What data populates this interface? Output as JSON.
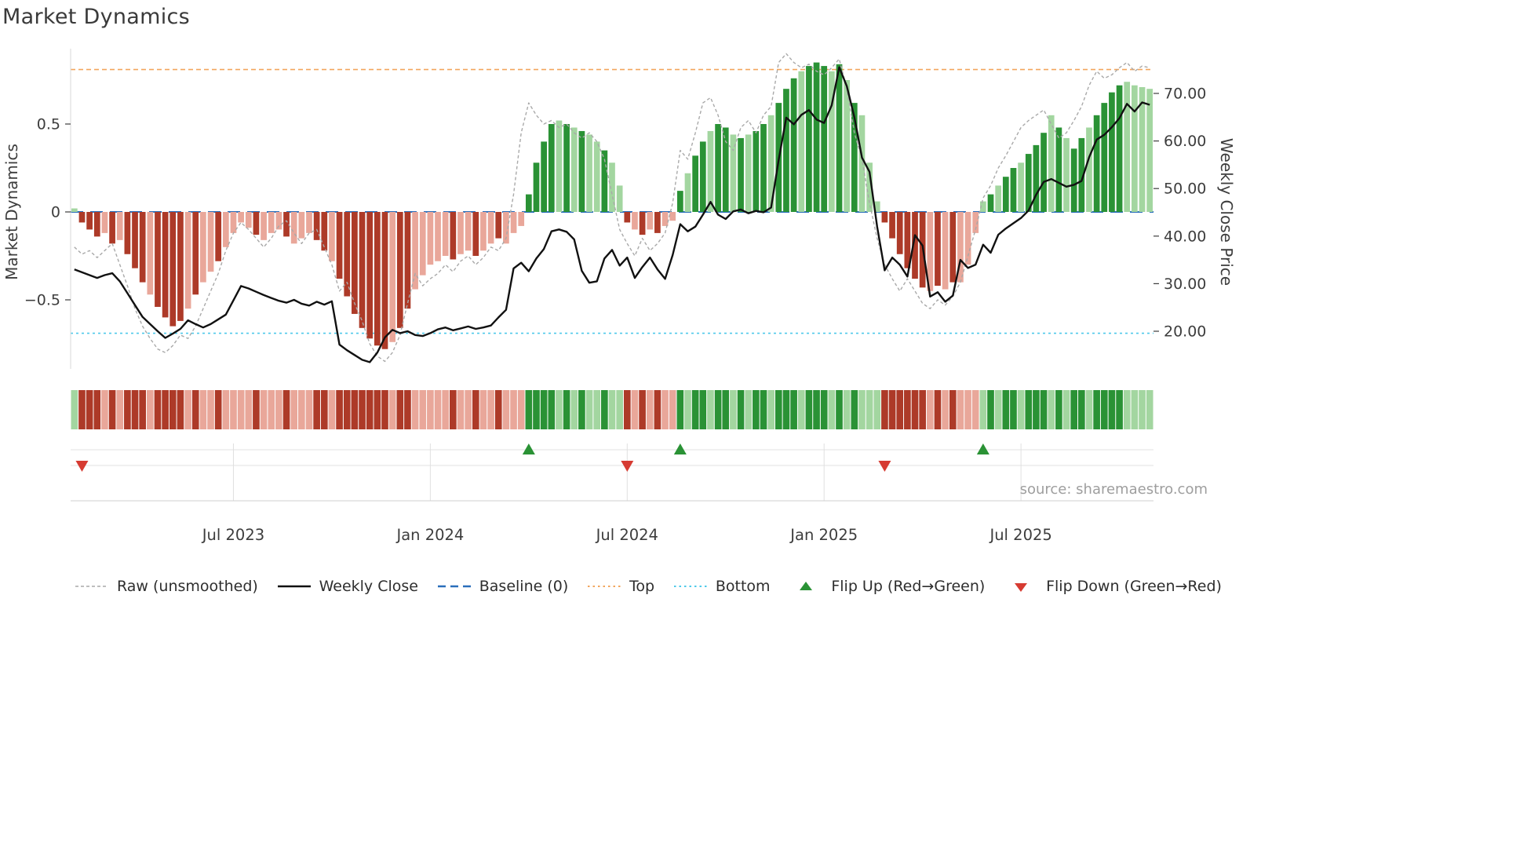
{
  "title": "Market Dynamics",
  "source": "source: sharemaestro.com",
  "colors": {
    "bar_neg_dark": "#ad3a28",
    "bar_neg_light": "#e9a79a",
    "bar_pos_dark": "#2a9235",
    "bar_pos_light": "#a3d6a0",
    "raw_line": "#a9a9a9",
    "close_line": "#111111",
    "baseline": "#2a6fbb",
    "top_line": "#f2a65e",
    "bottom_line": "#4ec9ea",
    "flip_up": "#2a9235",
    "flip_down": "#d63b32",
    "grid": "#e0e0e0",
    "axis_text": "#3d3d3d",
    "spine": "#d9d9d9",
    "source_text": "#9e9e9e"
  },
  "legend": [
    {
      "label": "Raw (unsmoothed)",
      "type": "line-dashed",
      "color": "#a9a9a9"
    },
    {
      "label": "Weekly Close",
      "type": "line-solid",
      "color": "#111111"
    },
    {
      "label": "Baseline (0)",
      "type": "line-longdash",
      "color": "#2a6fbb"
    },
    {
      "label": "Top",
      "type": "line-dotted",
      "color": "#f2a65e"
    },
    {
      "label": "Bottom",
      "type": "line-dotted",
      "color": "#4ec9ea"
    },
    {
      "label": "Flip Up (Red→Green)",
      "type": "triangle-up",
      "color": "#2a9235"
    },
    {
      "label": "Flip Down (Green→Red)",
      "type": "triangle-down",
      "color": "#d63b32"
    }
  ],
  "chart_data": {
    "type": "bar",
    "title": "Market Dynamics",
    "x_start_date": "2023-02-06",
    "x_step_days": 7,
    "n_weeks": 143,
    "ylabel_left": "Market Dynamics",
    "ylabel_right": "Weekly Close Price",
    "left_ticks": [
      {
        "value": 0.5,
        "label": "0.5"
      },
      {
        "value": 0.0,
        "label": "0"
      },
      {
        "value": -0.5,
        "label": "−0.5"
      }
    ],
    "right_ticks": [
      {
        "value": 70,
        "label": "70.00"
      },
      {
        "value": 60,
        "label": "60.00"
      },
      {
        "value": 50,
        "label": "50.00"
      },
      {
        "value": 40,
        "label": "40.00"
      },
      {
        "value": 30,
        "label": "30.00"
      },
      {
        "value": 20,
        "label": "20.00"
      }
    ],
    "x_ticks": [
      {
        "week": 21,
        "label": "Jul 2023"
      },
      {
        "week": 47,
        "label": "Jan 2024"
      },
      {
        "week": 73,
        "label": "Jul 2024"
      },
      {
        "week": 99,
        "label": "Jan 2025"
      },
      {
        "week": 125,
        "label": "Jul 2025"
      }
    ],
    "baseline_value": 0,
    "top_line_value": 0.81,
    "bottom_line_value": -0.69,
    "flip_up_weeks": [
      60,
      80,
      120
    ],
    "flip_down_weeks": [
      1,
      73,
      107
    ],
    "series": [
      {
        "name": "Market Dynamics",
        "type": "bar",
        "axis": "left",
        "values": [
          0.02,
          -0.06,
          -0.1,
          -0.14,
          -0.12,
          -0.18,
          -0.16,
          -0.24,
          -0.32,
          -0.4,
          -0.47,
          -0.54,
          -0.6,
          -0.65,
          -0.62,
          -0.55,
          -0.47,
          -0.4,
          -0.34,
          -0.28,
          -0.2,
          -0.12,
          -0.06,
          -0.09,
          -0.13,
          -0.16,
          -0.12,
          -0.1,
          -0.14,
          -0.18,
          -0.15,
          -0.12,
          -0.16,
          -0.22,
          -0.28,
          -0.38,
          -0.48,
          -0.58,
          -0.66,
          -0.72,
          -0.76,
          -0.78,
          -0.74,
          -0.66,
          -0.55,
          -0.44,
          -0.36,
          -0.3,
          -0.28,
          -0.25,
          -0.27,
          -0.24,
          -0.22,
          -0.25,
          -0.22,
          -0.18,
          -0.15,
          -0.18,
          -0.12,
          -0.08,
          0.1,
          0.28,
          0.4,
          0.5,
          0.52,
          0.5,
          0.48,
          0.46,
          0.44,
          0.4,
          0.35,
          0.28,
          0.15,
          -0.06,
          -0.1,
          -0.13,
          -0.1,
          -0.12,
          -0.08,
          -0.05,
          0.12,
          0.22,
          0.32,
          0.4,
          0.46,
          0.5,
          0.48,
          0.44,
          0.42,
          0.44,
          0.46,
          0.5,
          0.55,
          0.62,
          0.7,
          0.76,
          0.8,
          0.83,
          0.85,
          0.83,
          0.8,
          0.84,
          0.75,
          0.62,
          0.55,
          0.28,
          0.06,
          -0.06,
          -0.15,
          -0.24,
          -0.32,
          -0.38,
          -0.43,
          -0.45,
          -0.42,
          -0.44,
          -0.4,
          -0.4,
          -0.3,
          -0.12,
          0.06,
          0.1,
          0.15,
          0.2,
          0.25,
          0.28,
          0.33,
          0.38,
          0.45,
          0.55,
          0.48,
          0.42,
          0.36,
          0.42,
          0.48,
          0.55,
          0.62,
          0.68,
          0.72,
          0.74,
          0.72,
          0.71,
          0.7
        ]
      },
      {
        "name": "Raw (unsmoothed)",
        "type": "line",
        "style": "dashed",
        "axis": "left",
        "values": [
          -0.2,
          -0.24,
          -0.22,
          -0.26,
          -0.22,
          -0.18,
          -0.3,
          -0.42,
          -0.55,
          -0.65,
          -0.72,
          -0.78,
          -0.8,
          -0.76,
          -0.7,
          -0.72,
          -0.65,
          -0.55,
          -0.45,
          -0.35,
          -0.22,
          -0.12,
          -0.06,
          -0.1,
          -0.15,
          -0.2,
          -0.15,
          -0.08,
          -0.05,
          -0.12,
          -0.18,
          -0.12,
          -0.1,
          -0.2,
          -0.3,
          -0.45,
          -0.4,
          -0.52,
          -0.62,
          -0.75,
          -0.82,
          -0.85,
          -0.8,
          -0.7,
          -0.52,
          -0.35,
          -0.42,
          -0.38,
          -0.35,
          -0.3,
          -0.34,
          -0.28,
          -0.25,
          -0.3,
          -0.26,
          -0.2,
          -0.22,
          -0.15,
          0.1,
          0.45,
          0.62,
          0.55,
          0.5,
          0.52,
          0.48,
          0.5,
          0.45,
          0.42,
          0.45,
          0.4,
          0.3,
          0.1,
          -0.1,
          -0.18,
          -0.25,
          -0.15,
          -0.22,
          -0.18,
          -0.12,
          0.05,
          0.35,
          0.3,
          0.45,
          0.62,
          0.65,
          0.55,
          0.4,
          0.35,
          0.48,
          0.52,
          0.45,
          0.55,
          0.6,
          0.85,
          0.9,
          0.85,
          0.82,
          0.84,
          0.8,
          0.78,
          0.82,
          0.87,
          0.7,
          0.45,
          0.3,
          0.05,
          -0.15,
          -0.3,
          -0.38,
          -0.45,
          -0.38,
          -0.45,
          -0.52,
          -0.55,
          -0.5,
          -0.53,
          -0.48,
          -0.4,
          -0.25,
          -0.1,
          0.08,
          0.15,
          0.25,
          0.32,
          0.4,
          0.48,
          0.52,
          0.55,
          0.58,
          0.5,
          0.42,
          0.45,
          0.52,
          0.6,
          0.72,
          0.8,
          0.76,
          0.78,
          0.82,
          0.85,
          0.8,
          0.83,
          0.82
        ]
      },
      {
        "name": "Weekly Close",
        "type": "line",
        "style": "solid",
        "axis": "right",
        "values": [
          33.0,
          32.4,
          31.8,
          31.2,
          31.8,
          32.2,
          30.5,
          28.0,
          25.5,
          23.0,
          21.5,
          20.0,
          18.6,
          19.5,
          20.5,
          22.3,
          21.5,
          20.8,
          21.5,
          22.5,
          23.5,
          26.5,
          29.5,
          29.0,
          28.3,
          27.6,
          27.0,
          26.4,
          26.0,
          26.6,
          25.8,
          25.4,
          26.2,
          25.6,
          26.3,
          17.2,
          16.0,
          15.0,
          14.0,
          13.5,
          15.5,
          18.7,
          20.3,
          19.6,
          20.0,
          19.2,
          19.0,
          19.6,
          20.4,
          20.8,
          20.2,
          20.6,
          21.0,
          20.5,
          20.8,
          21.2,
          22.9,
          24.5,
          33.2,
          34.4,
          32.6,
          35.3,
          37.3,
          41.0,
          41.4,
          40.9,
          39.3,
          32.7,
          30.2,
          30.5,
          35.3,
          37.1,
          33.8,
          35.5,
          31.2,
          33.5,
          35.5,
          33.0,
          31.0,
          36.0,
          42.5,
          41.0,
          42.0,
          44.5,
          47.2,
          44.5,
          43.6,
          45.2,
          45.6,
          44.8,
          45.3,
          45.0,
          46.0,
          56.0,
          64.9,
          63.5,
          65.5,
          66.5,
          64.5,
          63.8,
          67.5,
          75.5,
          71.5,
          65.0,
          56.5,
          53.5,
          42.0,
          32.8,
          35.5,
          34.0,
          31.5,
          40.2,
          38.0,
          27.3,
          28.2,
          26.2,
          27.5,
          35.0,
          33.3,
          34.0,
          38.2,
          36.5,
          40.3,
          41.6,
          42.7,
          43.8,
          45.4,
          48.7,
          51.4,
          52.0,
          51.2,
          50.4,
          50.8,
          51.6,
          56.6,
          60.3,
          61.3,
          62.9,
          64.8,
          67.8,
          66.2,
          68.1,
          67.6
        ]
      }
    ],
    "bar_shade_dark": [
      0,
      1,
      1,
      1,
      0,
      1,
      0,
      1,
      1,
      1,
      0,
      1,
      1,
      1,
      1,
      0,
      1,
      0,
      0,
      1,
      0,
      0,
      0,
      0,
      1,
      0,
      0,
      0,
      1,
      0,
      0,
      0,
      1,
      1,
      0,
      1,
      1,
      1,
      1,
      1,
      1,
      1,
      0,
      1,
      1,
      0,
      0,
      0,
      0,
      0,
      1,
      0,
      0,
      1,
      0,
      0,
      1,
      0,
      0,
      0,
      1,
      1,
      1,
      1,
      0,
      1,
      0,
      1,
      0,
      0,
      1,
      0,
      0,
      1,
      0,
      1,
      0,
      1,
      0,
      0,
      1,
      0,
      1,
      1,
      0,
      1,
      1,
      0,
      1,
      0,
      1,
      1,
      0,
      1,
      1,
      1,
      0,
      1,
      1,
      1,
      0,
      1,
      0,
      1,
      0,
      0,
      0,
      1,
      1,
      1,
      1,
      1,
      1,
      0,
      1,
      0,
      1,
      0,
      0,
      0,
      0,
      1,
      0,
      1,
      1,
      0,
      1,
      1,
      1,
      0,
      1,
      0,
      1,
      1,
      0,
      1,
      1,
      1,
      1,
      0,
      0,
      0,
      0
    ]
  }
}
